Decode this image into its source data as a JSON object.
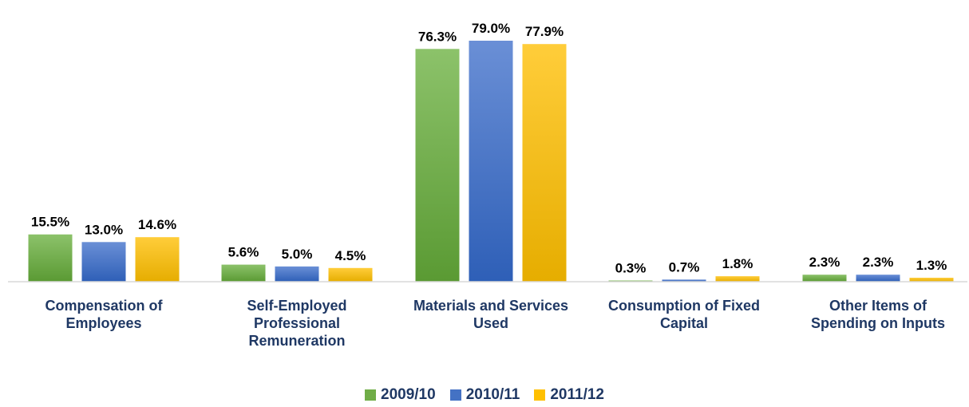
{
  "chart_data": {
    "type": "bar",
    "categories": [
      "Compensation of Employees",
      "Self-Employed Professional Remuneration",
      "Materials and Services Used",
      "Consumption of Fixed Capital",
      "Other Items of Spending on Inputs"
    ],
    "category_lines": [
      [
        "Compensation of",
        "Employees"
      ],
      [
        "Self-Employed",
        "Professional",
        "Remuneration"
      ],
      [
        "Materials and Services",
        "Used"
      ],
      [
        "Consumption of Fixed",
        "Capital"
      ],
      [
        "Other Items of",
        "Spending on Inputs"
      ]
    ],
    "series": [
      {
        "name": "2009/10",
        "values": [
          15.5,
          5.6,
          76.3,
          0.3,
          2.3
        ],
        "labels": [
          "15.5%",
          "5.6%",
          "76.3%",
          "0.3%",
          "2.3%"
        ],
        "color": "#70ad47"
      },
      {
        "name": "2010/11",
        "values": [
          13.0,
          5.0,
          79.0,
          0.7,
          2.3
        ],
        "labels": [
          "13.0%",
          "5.0%",
          "79.0%",
          "0.7%",
          "2.3%"
        ],
        "color": "#4472c4"
      },
      {
        "name": "2011/12",
        "values": [
          14.6,
          4.5,
          77.9,
          1.8,
          1.3
        ],
        "labels": [
          "14.6%",
          "4.5%",
          "77.9%",
          "1.8%",
          "1.3%"
        ],
        "color": "#ffc000"
      }
    ],
    "ylim": [
      0,
      79
    ],
    "grid": false,
    "legend_position": "bottom",
    "title": "",
    "xlabel": "",
    "ylabel": ""
  }
}
